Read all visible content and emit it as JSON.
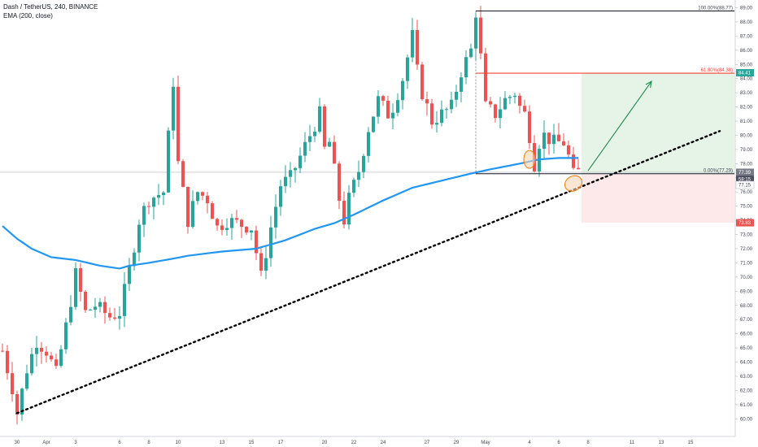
{
  "header": {
    "symbol": "Dash / TetherUS, 240, BINANCE",
    "indicator": "EMA (200, close)"
  },
  "colors": {
    "up": "#26a69a",
    "down": "#ef5350",
    "ema": "#2196f3",
    "trendline": "#000000",
    "fib_line": "#787b86",
    "fib_618": "#f44336",
    "target_zone": "#e6f4e8",
    "stop_zone": "#fde8ea",
    "arrow": "#1b8a4a",
    "ellipse_fill": "#f8d3b5",
    "ellipse_stroke": "#f57c00"
  },
  "chart_data": {
    "type": "candlestick",
    "y_axis": {
      "range": [
        59.5,
        89.2
      ],
      "ticks": [
        "60.00",
        "61.00",
        "62.00",
        "63.00",
        "64.00",
        "65.00",
        "66.00",
        "67.00",
        "68.00",
        "69.00",
        "70.00",
        "71.00",
        "72.00",
        "73.00",
        "74.00",
        "75.00",
        "76.00",
        "77.00",
        "78.00",
        "79.00",
        "80.00",
        "81.00",
        "82.00",
        "83.00",
        "84.00",
        "85.00",
        "86.00",
        "87.00",
        "88.00",
        "89.00"
      ]
    },
    "x_axis": {
      "labels": [
        {
          "text": "30",
          "bar": 3
        },
        {
          "text": "Apr",
          "bar": 9
        },
        {
          "text": "3",
          "bar": 15
        },
        {
          "text": "6",
          "bar": 24
        },
        {
          "text": "8",
          "bar": 30
        },
        {
          "text": "10",
          "bar": 36
        },
        {
          "text": "13",
          "bar": 45
        },
        {
          "text": "15",
          "bar": 51
        },
        {
          "text": "17",
          "bar": 57
        },
        {
          "text": "20",
          "bar": 66
        },
        {
          "text": "22",
          "bar": 72
        },
        {
          "text": "24",
          "bar": 78
        },
        {
          "text": "27",
          "bar": 87
        },
        {
          "text": "29",
          "bar": 93
        },
        {
          "text": "May",
          "bar": 99
        },
        {
          "text": "4",
          "bar": 108
        },
        {
          "text": "6",
          "bar": 114
        },
        {
          "text": "8",
          "bar": 120
        },
        {
          "text": "11",
          "bar": 129
        },
        {
          "text": "13",
          "bar": 135
        },
        {
          "text": "15",
          "bar": 141
        }
      ]
    },
    "ohlc_waypoints": [
      [
        0,
        64.8
      ],
      [
        2,
        62.2
      ],
      [
        3,
        60.4
      ],
      [
        5,
        63.5
      ],
      [
        7,
        65.5
      ],
      [
        9,
        64.8
      ],
      [
        11,
        63.2
      ],
      [
        13,
        66.5
      ],
      [
        15,
        70.2
      ],
      [
        17,
        67.5
      ],
      [
        19,
        68.0
      ],
      [
        22,
        67.2
      ],
      [
        24,
        67.5
      ],
      [
        26,
        70.5
      ],
      [
        28,
        74.0
      ],
      [
        30,
        75.5
      ],
      [
        33,
        76.0
      ],
      [
        35,
        83.8
      ],
      [
        36,
        78.0
      ],
      [
        38,
        74.0
      ],
      [
        40,
        76.0
      ],
      [
        42,
        75.5
      ],
      [
        44,
        73.5
      ],
      [
        46,
        74.0
      ],
      [
        48,
        73.8
      ],
      [
        51,
        73.5
      ],
      [
        53,
        70.0
      ],
      [
        55,
        73.5
      ],
      [
        57,
        76.5
      ],
      [
        59,
        77.0
      ],
      [
        61,
        78.5
      ],
      [
        63,
        80.0
      ],
      [
        65,
        81.5
      ],
      [
        66,
        79.0
      ],
      [
        67,
        79.5
      ],
      [
        69,
        75.5
      ],
      [
        70,
        74.0
      ],
      [
        71,
        75.5
      ],
      [
        73,
        77.5
      ],
      [
        75,
        80.5
      ],
      [
        77,
        82.5
      ],
      [
        79,
        81.5
      ],
      [
        80,
        82.0
      ],
      [
        82,
        84.0
      ],
      [
        83,
        85.5
      ],
      [
        84,
        87.0
      ],
      [
        85,
        84.5
      ],
      [
        86,
        83.0
      ],
      [
        88,
        81.0
      ],
      [
        90,
        81.5
      ],
      [
        92,
        82.0
      ],
      [
        94,
        84.5
      ],
      [
        96,
        86.0
      ],
      [
        97,
        88.7
      ],
      [
        98,
        85.5
      ],
      [
        99,
        82.0
      ],
      [
        101,
        81.5
      ],
      [
        103,
        82.5
      ],
      [
        105,
        83.0
      ],
      [
        106,
        82.0
      ],
      [
        107,
        81.5
      ],
      [
        108,
        80.0
      ],
      [
        109,
        78.0
      ],
      [
        110,
        79.5
      ],
      [
        111,
        80.0
      ],
      [
        113,
        79.5
      ],
      [
        115,
        79.5
      ],
      [
        116,
        78.5
      ],
      [
        117,
        77.2
      ],
      [
        118,
        77.4
      ]
    ],
    "ema200_waypoints": [
      [
        0,
        73.6
      ],
      [
        3,
        72.7
      ],
      [
        6,
        72.0
      ],
      [
        10,
        71.4
      ],
      [
        15,
        71.2
      ],
      [
        20,
        70.8
      ],
      [
        24,
        70.6
      ],
      [
        26,
        70.8
      ],
      [
        30,
        71.0
      ],
      [
        35,
        71.3
      ],
      [
        38,
        71.5
      ],
      [
        45,
        71.8
      ],
      [
        52,
        72.0
      ],
      [
        58,
        72.6
      ],
      [
        64,
        73.4
      ],
      [
        68,
        73.8
      ],
      [
        72,
        74.4
      ],
      [
        78,
        75.4
      ],
      [
        84,
        76.3
      ],
      [
        90,
        76.8
      ],
      [
        96,
        77.3
      ],
      [
        100,
        77.6
      ],
      [
        106,
        78.0
      ],
      [
        110,
        78.3
      ],
      [
        114,
        78.4
      ],
      [
        118,
        78.4
      ]
    ],
    "trendline": {
      "from": {
        "bar": 3,
        "price": 60.4
      },
      "to": {
        "bar": 147,
        "price": 80.3
      }
    },
    "fibonacci": {
      "start_bar": 97,
      "end_bar": 147,
      "levels": [
        {
          "label": "100.00%(88.77)",
          "price": 88.77
        },
        {
          "label": "61.80%(84.38)",
          "price": 84.38
        },
        {
          "label": "0.00%(77.29)",
          "price": 77.29
        }
      ]
    },
    "position": {
      "start_bar": 119,
      "end_bar": 147,
      "target": 84.41,
      "entry": 77.29,
      "stop": 73.83,
      "arrow": {
        "from": {
          "bar": 120,
          "price": 77.5
        },
        "to": {
          "bar": 133,
          "price": 83.8
        }
      }
    },
    "circles": [
      {
        "bar": 108,
        "price": 78.3
      },
      {
        "bar": 117,
        "price": 76.6
      }
    ],
    "price_tags": [
      {
        "text": "84.41",
        "price": 84.41,
        "color": "#26a69a"
      },
      {
        "text": "77.39",
        "price": 77.39,
        "color": "#787b86"
      },
      {
        "text": "58:15",
        "price": 76.9,
        "color": "#4e5260"
      },
      {
        "text": "77.15",
        "price": 76.5,
        "color": "#ffffff",
        "textcolor": "#434651"
      },
      {
        "text": "73.83",
        "price": 73.83,
        "color": "#ef5350"
      }
    ]
  }
}
